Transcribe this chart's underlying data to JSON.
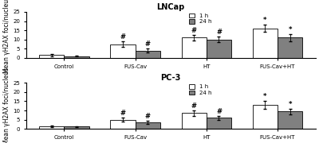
{
  "lncap": {
    "title": "LNCap",
    "categories": [
      "Control",
      "FUS-Cav",
      "HT",
      "FUS-Cav+HT"
    ],
    "values_1h": [
      1.5,
      7.5,
      11.0,
      16.0
    ],
    "errors_1h": [
      0.5,
      1.5,
      1.5,
      2.0
    ],
    "values_24h": [
      1.0,
      4.0,
      10.0,
      11.0
    ],
    "errors_24h": [
      0.3,
      1.0,
      1.5,
      2.0
    ],
    "sig_1h": [
      "",
      "#",
      "#",
      "*"
    ],
    "sig_24h": [
      "",
      "#",
      "#",
      "*"
    ]
  },
  "pc3": {
    "title": "PC-3",
    "categories": [
      "Control",
      "FUS-Cav",
      "HT",
      "FUS-Cav+HT"
    ],
    "values_1h": [
      1.5,
      5.0,
      8.5,
      13.0
    ],
    "errors_1h": [
      0.5,
      1.0,
      1.5,
      2.0
    ],
    "values_24h": [
      1.2,
      3.5,
      6.0,
      9.5
    ],
    "errors_24h": [
      0.3,
      0.8,
      1.0,
      1.5
    ],
    "sig_1h": [
      "",
      "#",
      "#",
      "*"
    ],
    "sig_24h": [
      "",
      "#",
      "#",
      "*"
    ]
  },
  "ylabel": "Mean γH2AX foci/nucleus",
  "ylim": [
    0,
    25
  ],
  "yticks": [
    0,
    5,
    10,
    15,
    20,
    25
  ],
  "color_1h": "#ffffff",
  "color_24h": "#808080",
  "bar_edge": "#000000",
  "legend_1h": "1 h",
  "legend_24h": "24 h",
  "bar_width": 0.35,
  "title_fontsize": 7,
  "label_fontsize": 5.5,
  "tick_fontsize": 5,
  "sig_fontsize": 6
}
